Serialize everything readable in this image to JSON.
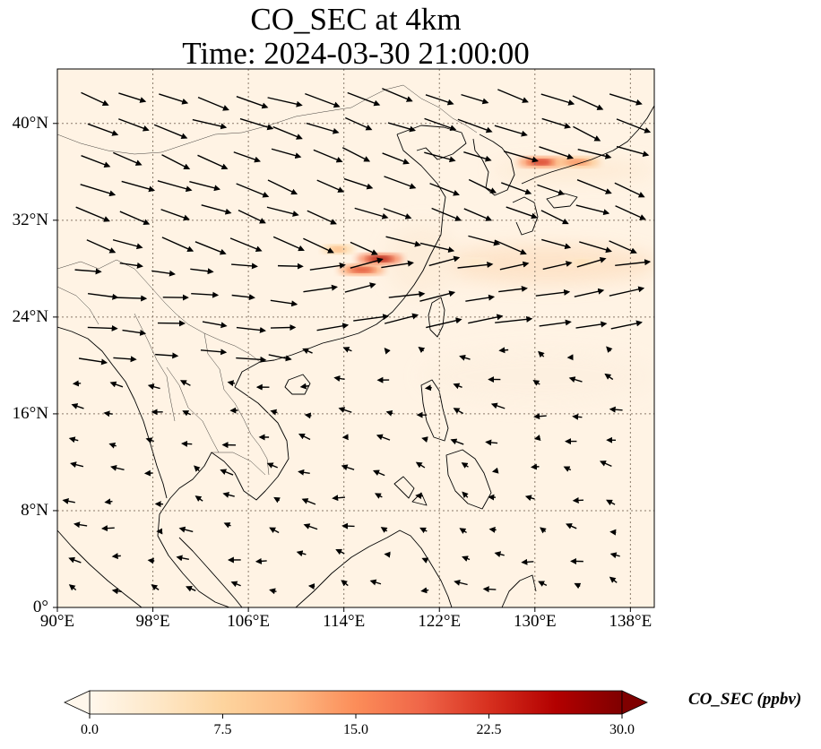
{
  "title": "CO_SEC at 4km",
  "subtitle": "Time: 2024-03-30 21:00:00",
  "lat_labels": [
    "40°N",
    "32°N",
    "24°N",
    "16°N",
    "8°N",
    "0°"
  ],
  "lon_labels": [
    "90°E",
    "98°E",
    "106°E",
    "114°E",
    "122°E",
    "130°E",
    "138°E"
  ],
  "extent": {
    "lon": [
      90,
      140
    ],
    "lat": [
      0,
      44.5
    ]
  },
  "gridlines": {
    "lon": [
      98,
      106,
      114,
      122,
      130,
      138
    ],
    "lat": [
      8,
      16,
      24,
      32,
      40
    ]
  },
  "colorbar": {
    "label": "CO_SEC (ppbv)",
    "ticks": [
      "0.0",
      "7.5",
      "15.0",
      "22.5",
      "30.0"
    ],
    "range": [
      0,
      30
    ],
    "colormap": "OrRd",
    "colors": [
      "#fff7ec",
      "#fee8c8",
      "#fdd49e",
      "#fdbb84",
      "#fc8d59",
      "#ef6548",
      "#d7301f",
      "#b30000",
      "#7f0000"
    ]
  },
  "colors": {
    "background_field": "#fff3e4",
    "gridline": "#8a7a6a",
    "vectors": "#000000",
    "coastline": "#000000"
  },
  "hotspots": [
    {
      "lon": 130.5,
      "lat": 36.8,
      "value": 24
    },
    {
      "lon": 133.5,
      "lat": 36.8,
      "value": 16
    },
    {
      "lon": 117.0,
      "lat": 28.8,
      "value": 28
    },
    {
      "lon": 115.5,
      "lat": 27.9,
      "value": 22
    },
    {
      "lon": 113.5,
      "lat": 29.6,
      "value": 12
    },
    {
      "lon": 134.0,
      "lat": 28.5,
      "value": 6
    },
    {
      "lon": 125.0,
      "lat": 28.5,
      "value": 4
    }
  ],
  "wind_field": {
    "description_units": "m/s components",
    "regions": [
      {
        "lon": [
          90,
          140
        ],
        "lat": [
          30,
          44
        ],
        "u": 14,
        "v": -5
      },
      {
        "lon": [
          90,
          110
        ],
        "lat": [
          20,
          30
        ],
        "u": 12,
        "v": -1
      },
      {
        "lon": [
          110,
          140
        ],
        "lat": [
          22,
          32
        ],
        "u": 15,
        "v": 3
      },
      {
        "lon": [
          90,
          140
        ],
        "lat": [
          0,
          20
        ],
        "u": -4,
        "v": 1
      }
    ]
  }
}
